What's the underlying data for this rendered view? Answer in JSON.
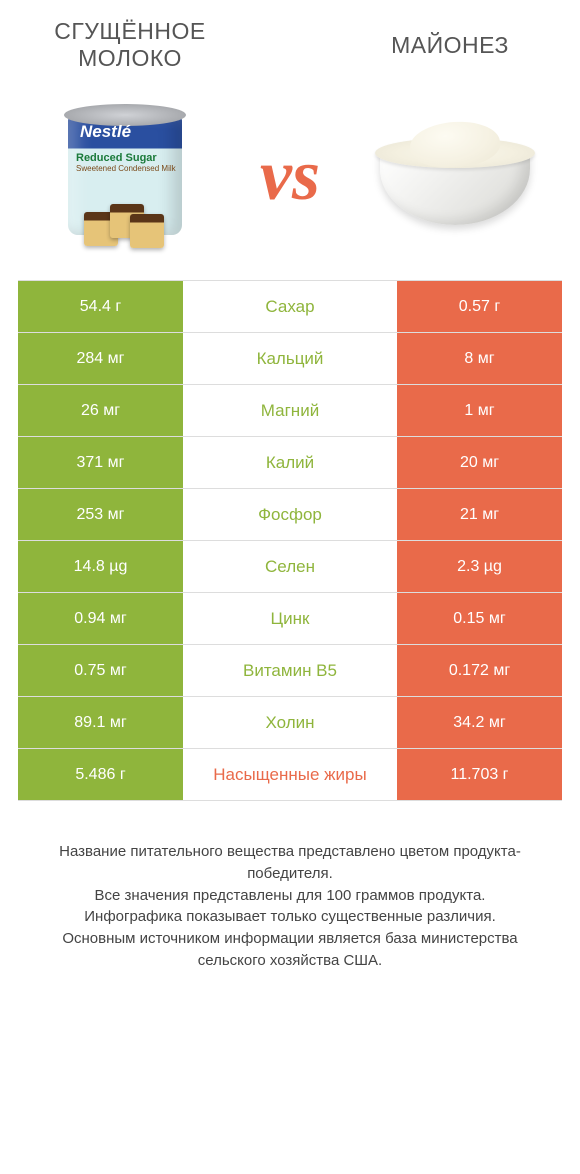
{
  "colors": {
    "green": "#8fb53c",
    "orange": "#e96a4a",
    "row_border": "#dddddd",
    "bg": "#ffffff"
  },
  "header": {
    "left_title": "Сгущённое молоко",
    "right_title": "Майонез",
    "vs": "vs"
  },
  "left_image": {
    "brand": "Nestlé",
    "line1": "Reduced Sugar",
    "line2": "Sweetened Condensed Milk"
  },
  "table": {
    "rows": [
      {
        "left": "54.4 г",
        "label": "Сахар",
        "right": "0.57 г",
        "winner": "left"
      },
      {
        "left": "284 мг",
        "label": "Кальций",
        "right": "8 мг",
        "winner": "left"
      },
      {
        "left": "26 мг",
        "label": "Магний",
        "right": "1 мг",
        "winner": "left"
      },
      {
        "left": "371 мг",
        "label": "Калий",
        "right": "20 мг",
        "winner": "left"
      },
      {
        "left": "253 мг",
        "label": "Фосфор",
        "right": "21 мг",
        "winner": "left"
      },
      {
        "left": "14.8 µg",
        "label": "Селен",
        "right": "2.3 µg",
        "winner": "left"
      },
      {
        "left": "0.94 мг",
        "label": "Цинк",
        "right": "0.15 мг",
        "winner": "left"
      },
      {
        "left": "0.75 мг",
        "label": "Витамин B5",
        "right": "0.172 мг",
        "winner": "left"
      },
      {
        "left": "89.1 мг",
        "label": "Холин",
        "right": "34.2 мг",
        "winner": "left"
      },
      {
        "left": "5.486 г",
        "label": "Насыщенные жиры",
        "right": "11.703 г",
        "winner": "right"
      }
    ]
  },
  "footer": {
    "line1": "Название питательного вещества представлено цветом продукта-победителя.",
    "line2": "Все значения представлены для 100 граммов продукта.",
    "line3": "Инфографика показывает только существенные различия.",
    "line4": "Основным источником информации является база министерства сельского хозяйства США."
  }
}
